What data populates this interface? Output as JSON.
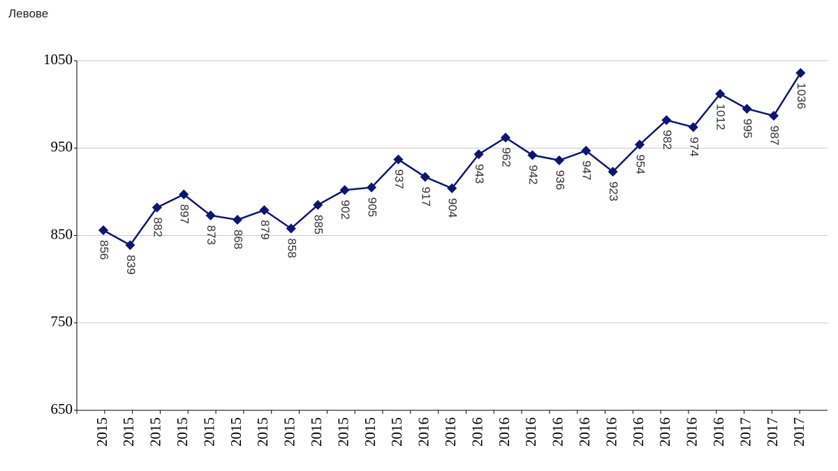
{
  "chart_data": {
    "type": "line",
    "y_axis_label": "Левове",
    "categories": [
      "2015",
      "2015",
      "2015",
      "2015",
      "2015",
      "2015",
      "2015",
      "2015",
      "2015",
      "2015",
      "2015",
      "2015",
      "2016",
      "2016",
      "2016",
      "2016",
      "2016",
      "2016",
      "2016",
      "2016",
      "2016",
      "2016",
      "2016",
      "2016",
      "2017",
      "2017",
      "2017"
    ],
    "values": [
      856,
      839,
      882,
      897,
      873,
      868,
      879,
      858,
      885,
      902,
      905,
      937,
      917,
      904,
      943,
      962,
      942,
      936,
      947,
      923,
      954,
      982,
      974,
      1012,
      995,
      987,
      1036
    ],
    "color": "#0a1672",
    "ylim": [
      650,
      1050
    ],
    "yticks": [
      650,
      750,
      850,
      950,
      1050
    ],
    "grid": true
  }
}
